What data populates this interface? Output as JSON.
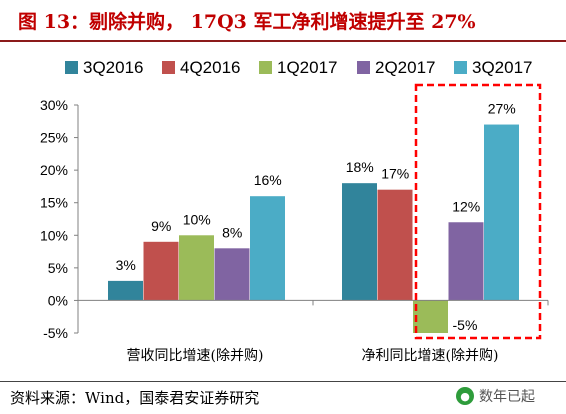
{
  "header": {
    "title": "图 13：剔除并购， 17Q3 军工净利增速提升至 27%"
  },
  "chart_data": {
    "type": "bar",
    "categories": [
      "营收同比增速(除并购)",
      "净利同比增速(除并购)"
    ],
    "series": [
      {
        "name": "3Q2016",
        "values": [
          3,
          18
        ],
        "labels": [
          "3%",
          "18%"
        ],
        "color": "#31849b"
      },
      {
        "name": "4Q2016",
        "values": [
          9,
          17
        ],
        "labels": [
          "9%",
          "17%"
        ],
        "color": "#c0504d"
      },
      {
        "name": "1Q2017",
        "values": [
          10,
          -5
        ],
        "labels": [
          "10%",
          "-5%"
        ],
        "color": "#9bbb59"
      },
      {
        "name": "2Q2017",
        "values": [
          8,
          12
        ],
        "labels": [
          "8%",
          "12%"
        ],
        "color": "#8064a2"
      },
      {
        "name": "3Q2017",
        "values": [
          16,
          27
        ],
        "labels": [
          "16%",
          "27%"
        ],
        "color": "#4bacc6"
      }
    ],
    "y_ticks": [
      "30%",
      "25%",
      "20%",
      "15%",
      "10%",
      "5%",
      "0%",
      "-5%"
    ],
    "ylim": [
      -5,
      30
    ],
    "grid": false,
    "legend": "top",
    "highlight_color": "#ff0000"
  },
  "footer": {
    "source": "资料来源：Wind，国泰君安证券研究",
    "watermark": "数年已起"
  }
}
